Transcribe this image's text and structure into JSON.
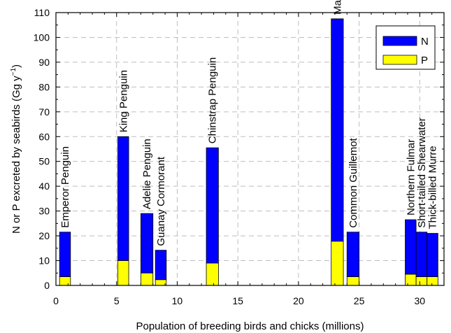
{
  "chart_data": {
    "type": "bar",
    "stacked": true,
    "title": "",
    "xlabel": "Population of breeding birds and chicks (millions)",
    "ylabel": "N or P excreted by seabirds (Gg y",
    "ylabel_superscript": "−1",
    "ylabel_close": ")",
    "xlim": [
      0,
      32
    ],
    "ylim": [
      0,
      110
    ],
    "xticks": [
      0,
      5,
      10,
      15,
      20,
      25,
      30
    ],
    "yticks": [
      0,
      10,
      20,
      30,
      40,
      50,
      60,
      70,
      80,
      90,
      100,
      110
    ],
    "grid": true,
    "legend_position": "top-right",
    "series": [
      {
        "name": "N",
        "color": "#0000ff"
      },
      {
        "name": "P",
        "color": "#ffff00"
      }
    ],
    "bars": [
      {
        "label": "Emperor Penguin",
        "x0": 0.3,
        "x1": 1.2,
        "p": 3.5,
        "total": 21.5
      },
      {
        "label": "King Penguin",
        "x0": 5.1,
        "x1": 6.0,
        "p": 10,
        "total": 60
      },
      {
        "label": "Adelie Penguin",
        "x0": 7.0,
        "x1": 8.0,
        "p": 5,
        "total": 29
      },
      {
        "label": "Guanay Cormorant",
        "x0": 8.2,
        "x1": 9.1,
        "p": 2.3,
        "total": 14.2
      },
      {
        "label": "Chinstrap Penguin",
        "x0": 12.4,
        "x1": 13.4,
        "p": 9,
        "total": 55.5
      },
      {
        "label": "Macaroni Penguin",
        "x0": 22.7,
        "x1": 23.7,
        "p": 17.8,
        "total": 107.5
      },
      {
        "label": "Common Guillemot",
        "x0": 24.0,
        "x1": 25.0,
        "p": 3.5,
        "total": 21.5
      },
      {
        "label": "Northern Fulmar",
        "x0": 28.8,
        "x1": 29.7,
        "p": 4.5,
        "total": 26.5
      },
      {
        "label": "Short-tailed Shearwater",
        "x0": 29.7,
        "x1": 30.6,
        "p": 3.5,
        "total": 21.5
      },
      {
        "label": "Thick-billed Murre",
        "x0": 30.6,
        "x1": 31.5,
        "p": 3.5,
        "total": 21
      }
    ]
  }
}
